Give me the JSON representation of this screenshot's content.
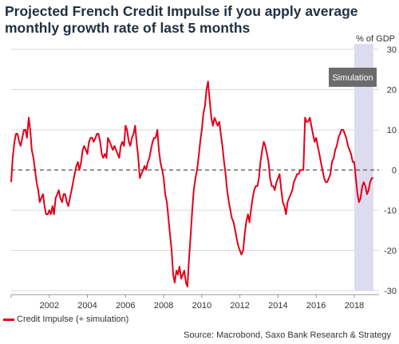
{
  "title_line1": "Projected French Credit Impulse if you apply average",
  "title_line2": "monthly growth rate of last 5 months",
  "legend_label": "Credit Impulse (+ simulation)",
  "source": "Source: Macrobond, Saxo Bank Research & Strategy",
  "chart_data": {
    "type": "line",
    "unit_label": "% of GDP",
    "annotation": "Simulation",
    "ylim": [
      -30,
      30
    ],
    "yticks": [
      30,
      20,
      10,
      0,
      -10,
      -20,
      -30
    ],
    "xlim": [
      2000.0,
      2019.3
    ],
    "xticks": [
      "2002",
      "2004",
      "2006",
      "2008",
      "2010",
      "2012",
      "2014",
      "2016",
      "2018"
    ],
    "zero_line": "dashed",
    "simulation_span": [
      2018.0,
      2019.0
    ],
    "grid": true,
    "colors": {
      "series": "#e2001a",
      "band": "#dcdcee",
      "grid": "#d9d9d9",
      "annotation_bg": "#6b6b6b"
    },
    "series": [
      {
        "name": "Credit Impulse (+ simulation)",
        "x": [
          2000.0,
          2000.08,
          2000.17,
          2000.25,
          2000.33,
          2000.42,
          2000.5,
          2000.58,
          2000.67,
          2000.75,
          2000.83,
          2000.92,
          2001.0,
          2001.08,
          2001.17,
          2001.25,
          2001.33,
          2001.42,
          2001.5,
          2001.58,
          2001.67,
          2001.75,
          2001.83,
          2001.92,
          2002.0,
          2002.08,
          2002.17,
          2002.25,
          2002.33,
          2002.42,
          2002.5,
          2002.58,
          2002.67,
          2002.75,
          2002.83,
          2002.92,
          2003.0,
          2003.08,
          2003.17,
          2003.25,
          2003.33,
          2003.42,
          2003.5,
          2003.58,
          2003.67,
          2003.75,
          2003.83,
          2003.92,
          2004.0,
          2004.08,
          2004.17,
          2004.25,
          2004.33,
          2004.42,
          2004.5,
          2004.58,
          2004.67,
          2004.75,
          2004.83,
          2004.92,
          2005.0,
          2005.08,
          2005.17,
          2005.25,
          2005.33,
          2005.42,
          2005.5,
          2005.58,
          2005.67,
          2005.75,
          2005.83,
          2005.92,
          2006.0,
          2006.08,
          2006.17,
          2006.25,
          2006.33,
          2006.42,
          2006.5,
          2006.58,
          2006.67,
          2006.75,
          2006.83,
          2006.92,
          2007.0,
          2007.08,
          2007.17,
          2007.25,
          2007.33,
          2007.42,
          2007.5,
          2007.58,
          2007.67,
          2007.75,
          2007.83,
          2007.92,
          2008.0,
          2008.08,
          2008.17,
          2008.25,
          2008.33,
          2008.42,
          2008.5,
          2008.58,
          2008.67,
          2008.75,
          2008.83,
          2008.92,
          2009.0,
          2009.08,
          2009.17,
          2009.25,
          2009.33,
          2009.42,
          2009.5,
          2009.58,
          2009.67,
          2009.75,
          2009.83,
          2009.92,
          2010.0,
          2010.08,
          2010.17,
          2010.25,
          2010.33,
          2010.42,
          2010.5,
          2010.58,
          2010.67,
          2010.75,
          2010.83,
          2010.92,
          2011.0,
          2011.08,
          2011.17,
          2011.25,
          2011.33,
          2011.42,
          2011.5,
          2011.58,
          2011.67,
          2011.75,
          2011.83,
          2011.92,
          2012.0,
          2012.08,
          2012.17,
          2012.25,
          2012.33,
          2012.42,
          2012.5,
          2012.58,
          2012.67,
          2012.75,
          2012.83,
          2012.92,
          2013.0,
          2013.08,
          2013.17,
          2013.25,
          2013.33,
          2013.42,
          2013.5,
          2013.58,
          2013.67,
          2013.75,
          2013.83,
          2013.92,
          2014.0,
          2014.08,
          2014.17,
          2014.25,
          2014.33,
          2014.42,
          2014.5,
          2014.58,
          2014.67,
          2014.75,
          2014.83,
          2014.92,
          2015.0,
          2015.08,
          2015.17,
          2015.25,
          2015.33,
          2015.42,
          2015.5,
          2015.58,
          2015.67,
          2015.75,
          2015.83,
          2015.92,
          2016.0,
          2016.08,
          2016.17,
          2016.25,
          2016.33,
          2016.42,
          2016.5,
          2016.58,
          2016.67,
          2016.75,
          2016.83,
          2016.92,
          2017.0,
          2017.08,
          2017.17,
          2017.25,
          2017.33,
          2017.42,
          2017.5,
          2017.58,
          2017.67,
          2017.75,
          2017.83,
          2017.92,
          2018.0,
          2018.08,
          2018.17,
          2018.25,
          2018.33,
          2018.42,
          2018.5,
          2018.58,
          2018.67,
          2018.75,
          2018.83,
          2018.92,
          2019.0
        ],
        "values": [
          -3,
          3,
          7,
          9,
          9,
          7,
          6,
          8,
          10,
          10,
          8,
          13,
          10,
          5,
          3,
          0,
          -3,
          -5,
          -8,
          -7,
          -6,
          -9,
          -11,
          -11,
          -10,
          -11,
          -9,
          -11,
          -7,
          -6,
          -5,
          -7,
          -8,
          -6,
          -6,
          -8,
          -9,
          -7,
          -5,
          -3,
          -1,
          1,
          2,
          0,
          2,
          5,
          6,
          5,
          4,
          7,
          8,
          8,
          7,
          8,
          9,
          9,
          7,
          4,
          3,
          4,
          3,
          8,
          7,
          6,
          5,
          6,
          5,
          4,
          3,
          6,
          7,
          6,
          11,
          10,
          7,
          6,
          8,
          9,
          11,
          7,
          3,
          -2,
          -1,
          0,
          1,
          0,
          2,
          3,
          5,
          7,
          8,
          8,
          10,
          5,
          2,
          0,
          -2,
          -6,
          -8,
          -12,
          -16,
          -20,
          -26,
          -28,
          -25,
          -26,
          -24,
          -27,
          -26,
          -25,
          -28,
          -29,
          -22,
          -16,
          -10,
          -5,
          -2,
          0,
          3,
          7,
          10,
          14,
          16,
          20,
          22,
          17,
          13,
          11,
          13,
          12,
          11,
          12,
          9,
          6,
          2,
          -1,
          -5,
          -8,
          -10,
          -12,
          -13,
          -15,
          -17,
          -19,
          -20,
          -21,
          -20,
          -16,
          -13,
          -11,
          -13,
          -10,
          -7,
          -5,
          -4,
          -4,
          -2,
          2,
          5,
          7,
          6,
          4,
          2,
          -2,
          -4,
          -4,
          -5,
          -3,
          -2,
          -1,
          -5,
          -8,
          -9,
          -11,
          -8,
          -7,
          -6,
          -5,
          -3,
          -2,
          -1,
          -1,
          0,
          0,
          0,
          13,
          12,
          12,
          13,
          11,
          9,
          7,
          8,
          6,
          4,
          2,
          0,
          -2,
          -3,
          -3,
          -2,
          -1,
          2,
          3,
          5,
          6,
          8,
          9,
          10,
          10,
          9,
          8,
          6,
          5,
          4,
          2,
          2,
          -2,
          -6,
          -8,
          -7,
          -4,
          -3,
          -4,
          -6,
          -5,
          -3,
          -2,
          -2
        ]
      }
    ]
  }
}
